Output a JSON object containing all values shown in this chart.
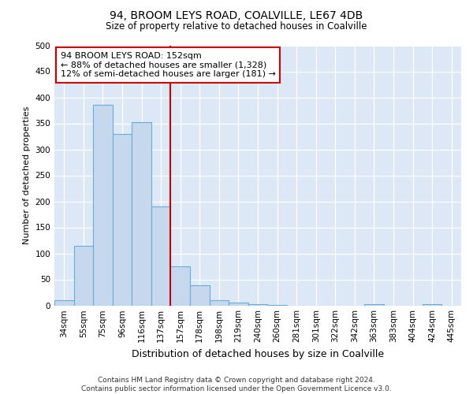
{
  "title": "94, BROOM LEYS ROAD, COALVILLE, LE67 4DB",
  "subtitle": "Size of property relative to detached houses in Coalville",
  "xlabel": "Distribution of detached houses by size in Coalville",
  "ylabel": "Number of detached properties",
  "categories": [
    "34sqm",
    "55sqm",
    "75sqm",
    "96sqm",
    "116sqm",
    "137sqm",
    "157sqm",
    "178sqm",
    "198sqm",
    "219sqm",
    "240sqm",
    "260sqm",
    "281sqm",
    "301sqm",
    "322sqm",
    "342sqm",
    "363sqm",
    "383sqm",
    "404sqm",
    "424sqm",
    "445sqm"
  ],
  "values": [
    10,
    115,
    385,
    330,
    353,
    190,
    75,
    38,
    10,
    6,
    3,
    1,
    0,
    0,
    0,
    0,
    2,
    0,
    0,
    2,
    0
  ],
  "bar_color": "#c5d8ee",
  "bar_edge_color": "#6aaed6",
  "bar_width": 1.0,
  "vline_position": 6,
  "vline_color": "#cc0000",
  "annotation_text": "94 BROOM LEYS ROAD: 152sqm\n← 88% of detached houses are smaller (1,328)\n12% of semi-detached houses are larger (181) →",
  "annotation_box_color": "#ffffff",
  "annotation_box_edge": "#cc0000",
  "ylim": [
    0,
    500
  ],
  "yticks": [
    0,
    50,
    100,
    150,
    200,
    250,
    300,
    350,
    400,
    450,
    500
  ],
  "background_color": "#dce8f5",
  "footer_line1": "Contains HM Land Registry data © Crown copyright and database right 2024.",
  "footer_line2": "Contains public sector information licensed under the Open Government Licence v3.0.",
  "fig_width": 6.0,
  "fig_height": 5.0,
  "title_fontsize": 10,
  "subtitle_fontsize": 8.5,
  "ylabel_fontsize": 8,
  "xlabel_fontsize": 9,
  "tick_fontsize": 7.5,
  "annotation_fontsize": 8,
  "footer_fontsize": 6.5
}
